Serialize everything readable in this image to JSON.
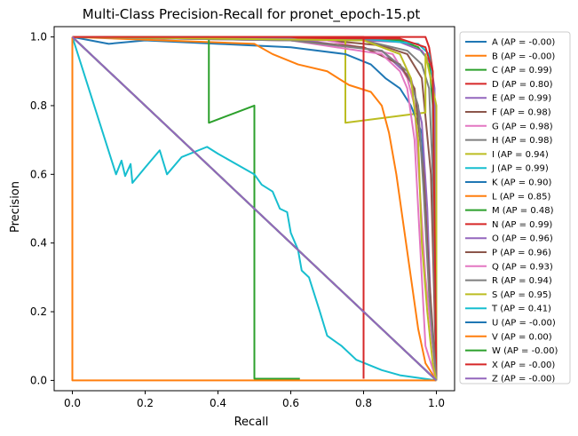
{
  "chart_data": {
    "type": "line",
    "title": "Multi-Class Precision-Recall for pronet_epoch-15.pt",
    "xlabel": "Recall",
    "ylabel": "Precision",
    "xlim": [
      -0.05,
      1.05
    ],
    "ylim": [
      -0.03,
      1.03
    ],
    "xticks": [
      "0.0",
      "0.2",
      "0.4",
      "0.6",
      "0.8",
      "1.0"
    ],
    "yticks": [
      "0.0",
      "0.2",
      "0.4",
      "0.6",
      "0.8",
      "1.0"
    ],
    "grid": false,
    "legend_position": "outside-right",
    "series": [
      {
        "name": "A (AP = -0.00)",
        "color": "#1f77b4",
        "points": [
          [
            0,
            1
          ],
          [
            1,
            0
          ]
        ]
      },
      {
        "name": "B (AP = -0.00)",
        "color": "#ff7f0e",
        "points": [
          [
            0,
            1
          ],
          [
            1,
            0
          ]
        ]
      },
      {
        "name": "C (AP = 0.99)",
        "color": "#2ca02c",
        "points": [
          [
            0,
            1
          ],
          [
            0.6,
            0.998
          ],
          [
            0.9,
            0.99
          ],
          [
            0.95,
            0.97
          ],
          [
            0.98,
            0.93
          ],
          [
            0.99,
            0.8
          ],
          [
            1,
            0
          ]
        ]
      },
      {
        "name": "D (AP = 0.80)",
        "color": "#d62728",
        "points": [
          [
            0,
            1
          ],
          [
            0.97,
            1
          ],
          [
            0.98,
            0.97
          ],
          [
            0.99,
            0.9
          ],
          [
            0.995,
            0.5
          ],
          [
            1,
            0.01
          ]
        ]
      },
      {
        "name": "E (AP = 0.99)",
        "color": "#9467bd",
        "points": [
          [
            0,
            1
          ],
          [
            0.7,
            0.995
          ],
          [
            0.9,
            0.985
          ],
          [
            0.96,
            0.96
          ],
          [
            0.985,
            0.92
          ],
          [
            0.995,
            0.85
          ],
          [
            1,
            0
          ]
        ]
      },
      {
        "name": "F (AP = 0.98)",
        "color": "#8c564b",
        "points": [
          [
            0,
            1
          ],
          [
            0.7,
            0.99
          ],
          [
            0.85,
            0.975
          ],
          [
            0.92,
            0.95
          ],
          [
            0.96,
            0.88
          ],
          [
            0.985,
            0.6
          ],
          [
            1,
            0
          ]
        ]
      },
      {
        "name": "G (AP = 0.98)",
        "color": "#e377c2",
        "points": [
          [
            0,
            1
          ],
          [
            0.7,
            0.99
          ],
          [
            0.88,
            0.95
          ],
          [
            0.92,
            0.88
          ],
          [
            0.94,
            0.8
          ],
          [
            0.955,
            0.55
          ],
          [
            0.97,
            0.3
          ],
          [
            1,
            0
          ]
        ]
      },
      {
        "name": "H (AP = 0.98)",
        "color": "#7f7f7f",
        "points": [
          [
            0,
            1
          ],
          [
            0.8,
            0.99
          ],
          [
            0.92,
            0.96
          ],
          [
            0.96,
            0.92
          ],
          [
            0.98,
            0.85
          ],
          [
            0.99,
            0.6
          ],
          [
            1,
            0
          ]
        ]
      },
      {
        "name": "I (AP = 0.94)",
        "color": "#bcbd22",
        "points": [
          [
            0,
            1
          ],
          [
            0.75,
            1
          ],
          [
            0.75,
            0.75
          ],
          [
            0.97,
            0.78
          ],
          [
            0.97,
            0.95
          ],
          [
            1,
            0.8
          ],
          [
            1,
            0
          ]
        ]
      },
      {
        "name": "J (AP = 0.99)",
        "color": "#17becf",
        "points": [
          [
            0,
            1
          ],
          [
            0.8,
            0.995
          ],
          [
            0.95,
            0.98
          ],
          [
            0.98,
            0.95
          ],
          [
            0.99,
            0.88
          ],
          [
            1,
            0
          ]
        ]
      },
      {
        "name": "K (AP = 0.90)",
        "color": "#1f77b4",
        "points": [
          [
            0,
            1
          ],
          [
            0.1,
            0.98
          ],
          [
            0.2,
            0.99
          ],
          [
            0.4,
            0.98
          ],
          [
            0.6,
            0.97
          ],
          [
            0.75,
            0.95
          ],
          [
            0.82,
            0.92
          ],
          [
            0.86,
            0.88
          ],
          [
            0.9,
            0.85
          ],
          [
            0.93,
            0.8
          ],
          [
            0.96,
            0.72
          ],
          [
            0.97,
            0.5
          ],
          [
            0.98,
            0.3
          ],
          [
            0.99,
            0.12
          ],
          [
            1,
            0
          ]
        ]
      },
      {
        "name": "L (AP = 0.85)",
        "color": "#ff7f0e",
        "points": [
          [
            0,
            1
          ],
          [
            0.5,
            0.98
          ],
          [
            0.55,
            0.95
          ],
          [
            0.62,
            0.92
          ],
          [
            0.7,
            0.9
          ],
          [
            0.76,
            0.86
          ],
          [
            0.82,
            0.84
          ],
          [
            0.85,
            0.8
          ],
          [
            0.87,
            0.72
          ],
          [
            0.89,
            0.6
          ],
          [
            0.91,
            0.45
          ],
          [
            0.93,
            0.3
          ],
          [
            0.95,
            0.15
          ],
          [
            0.97,
            0.05
          ],
          [
            1,
            0
          ]
        ]
      },
      {
        "name": "M (AP = 0.48)",
        "color": "#2ca02c",
        "points": [
          [
            0,
            1
          ],
          [
            0.375,
            1
          ],
          [
            0.375,
            0.75
          ],
          [
            0.5,
            0.8
          ],
          [
            0.5,
            0.005
          ],
          [
            0.625,
            0.005
          ]
        ]
      },
      {
        "name": "N (AP = 0.99)",
        "color": "#d62728",
        "points": [
          [
            0,
            1
          ],
          [
            0.9,
            0.995
          ],
          [
            0.97,
            0.97
          ],
          [
            0.99,
            0.9
          ],
          [
            1,
            0
          ]
        ]
      },
      {
        "name": "O (AP = 0.96)",
        "color": "#9467bd",
        "points": [
          [
            0,
            1
          ],
          [
            0.6,
            0.995
          ],
          [
            0.85,
            0.96
          ],
          [
            0.93,
            0.88
          ],
          [
            0.96,
            0.75
          ],
          [
            0.975,
            0.5
          ],
          [
            0.985,
            0.2
          ],
          [
            1,
            0
          ]
        ]
      },
      {
        "name": "P (AP = 0.96)",
        "color": "#8c564b",
        "points": [
          [
            0,
            1
          ],
          [
            0.6,
            0.99
          ],
          [
            0.8,
            0.97
          ],
          [
            0.9,
            0.92
          ],
          [
            0.94,
            0.85
          ],
          [
            0.965,
            0.6
          ],
          [
            0.98,
            0.3
          ],
          [
            1,
            0
          ]
        ]
      },
      {
        "name": "Q (AP = 0.93)",
        "color": "#e377c2",
        "points": [
          [
            0,
            1
          ],
          [
            0.6,
            0.99
          ],
          [
            0.85,
            0.95
          ],
          [
            0.9,
            0.9
          ],
          [
            0.92,
            0.85
          ],
          [
            0.94,
            0.7
          ],
          [
            0.955,
            0.4
          ],
          [
            0.97,
            0.1
          ],
          [
            1,
            0
          ]
        ]
      },
      {
        "name": "R (AP = 0.94)",
        "color": "#7f7f7f",
        "points": [
          [
            0,
            1
          ],
          [
            0.6,
            0.99
          ],
          [
            0.85,
            0.96
          ],
          [
            0.92,
            0.9
          ],
          [
            0.95,
            0.8
          ],
          [
            0.965,
            0.55
          ],
          [
            0.98,
            0.25
          ],
          [
            1,
            0
          ]
        ]
      },
      {
        "name": "S (AP = 0.95)",
        "color": "#bcbd22",
        "points": [
          [
            0,
            1
          ],
          [
            0.8,
            0.99
          ],
          [
            0.9,
            0.95
          ],
          [
            0.93,
            0.88
          ],
          [
            0.95,
            0.7
          ],
          [
            0.96,
            0.4
          ],
          [
            0.975,
            0.2
          ],
          [
            0.99,
            0.05
          ],
          [
            1,
            0
          ]
        ]
      },
      {
        "name": "T (AP = 0.41)",
        "color": "#17becf",
        "points": [
          [
            0,
            1
          ],
          [
            0.12,
            0.6
          ],
          [
            0.135,
            0.64
          ],
          [
            0.145,
            0.595
          ],
          [
            0.16,
            0.63
          ],
          [
            0.165,
            0.575
          ],
          [
            0.2,
            0.62
          ],
          [
            0.24,
            0.67
          ],
          [
            0.26,
            0.6
          ],
          [
            0.3,
            0.65
          ],
          [
            0.37,
            0.68
          ],
          [
            0.4,
            0.66
          ],
          [
            0.45,
            0.63
          ],
          [
            0.5,
            0.6
          ],
          [
            0.52,
            0.57
          ],
          [
            0.55,
            0.55
          ],
          [
            0.57,
            0.5
          ],
          [
            0.59,
            0.49
          ],
          [
            0.6,
            0.43
          ],
          [
            0.62,
            0.38
          ],
          [
            0.63,
            0.32
          ],
          [
            0.65,
            0.3
          ],
          [
            0.68,
            0.2
          ],
          [
            0.7,
            0.13
          ],
          [
            0.74,
            0.1
          ],
          [
            0.78,
            0.06
          ],
          [
            0.85,
            0.03
          ],
          [
            0.9,
            0.015
          ],
          [
            1,
            0
          ]
        ]
      },
      {
        "name": "U (AP = -0.00)",
        "color": "#1f77b4",
        "points": [
          [
            0,
            1
          ],
          [
            1,
            0
          ]
        ]
      },
      {
        "name": "V (AP = 0.00)",
        "color": "#ff7f0e",
        "points": [
          [
            0,
            1
          ],
          [
            0,
            0
          ],
          [
            1,
            0
          ]
        ]
      },
      {
        "name": "W (AP = -0.00)",
        "color": "#2ca02c",
        "points": [
          [
            0,
            1
          ],
          [
            1,
            0
          ]
        ]
      },
      {
        "name": "X (AP = -0.00)",
        "color": "#d62728",
        "points": [
          [
            0,
            1
          ],
          [
            0.8,
            1
          ],
          [
            0.8,
            0.005
          ]
        ]
      },
      {
        "name": "Z (AP = -0.00)",
        "color": "#9467bd",
        "points": [
          [
            0,
            1
          ],
          [
            1,
            0
          ]
        ]
      }
    ]
  }
}
